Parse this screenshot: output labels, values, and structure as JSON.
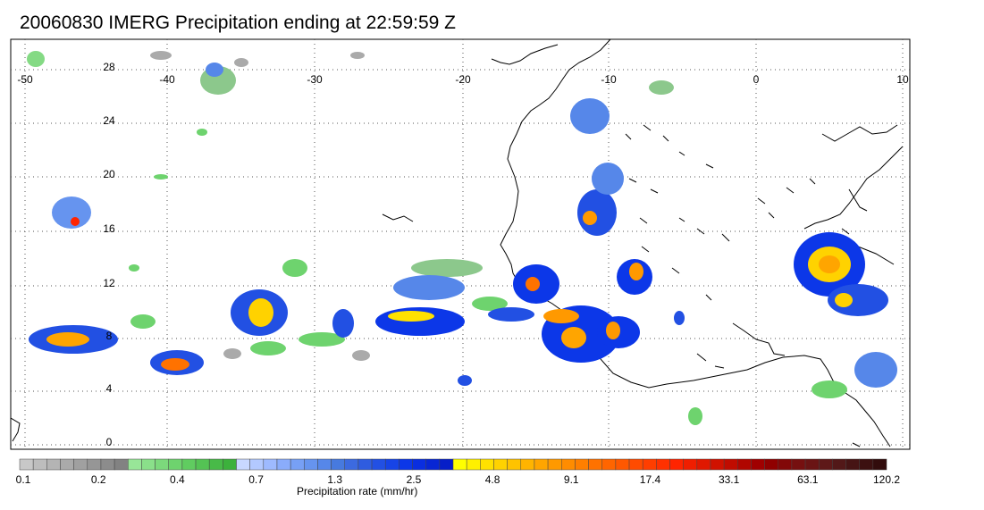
{
  "title": "20060830 IMERG Precipitation ending at 22:59:59 Z",
  "map": {
    "lon_range": [
      -50,
      10
    ],
    "lat_range": [
      -1,
      30
    ],
    "lon_ticks": [
      "-50",
      "-40",
      "-30",
      "-20",
      "-10",
      "0",
      "10"
    ],
    "lat_ticks": [
      "28",
      "24",
      "20",
      "16",
      "12",
      "8",
      "4",
      "0"
    ],
    "grid": "dotted"
  },
  "colorbar": {
    "title": "Precipitation rate (mm/hr)",
    "tick_labels": [
      "0.1",
      "0.2",
      "0.4",
      "0.7",
      "1.3",
      "2.5",
      "4.8",
      "9.1",
      "17.4",
      "33.1",
      "63.1",
      "120.2"
    ],
    "colors": [
      "#c8c8c8",
      "#bdbdbd",
      "#b4b4b4",
      "#aaaaaa",
      "#a0a0a0",
      "#969696",
      "#8c8c8c",
      "#828282",
      "#98e698",
      "#8ae08a",
      "#7cd97c",
      "#6ed36e",
      "#60cc60",
      "#54c354",
      "#48ba48",
      "#3cb13c",
      "#c8d8ff",
      "#b3c9ff",
      "#9ebaff",
      "#8aacfb",
      "#77a0f5",
      "#6694ef",
      "#5687e9",
      "#477adf",
      "#3c6ae0",
      "#2f5ce0",
      "#2250e3",
      "#1744e6",
      "#0c37e8",
      "#0a2ee0",
      "#0826d4",
      "#061ec8",
      "#ffff00",
      "#fff000",
      "#ffe100",
      "#ffd200",
      "#ffc300",
      "#ffb400",
      "#ffa500",
      "#ff9900",
      "#ff8c00",
      "#ff7f00",
      "#ff7200",
      "#ff6500",
      "#ff5800",
      "#ff4b00",
      "#ff3e00",
      "#ff3100",
      "#ff2400",
      "#f01e00",
      "#e01800",
      "#d01200",
      "#c00c00",
      "#b00600",
      "#a00000",
      "#900000",
      "#820808",
      "#761010",
      "#6a1414",
      "#5e1818",
      "#521818",
      "#461414",
      "#3c1010",
      "#320c0c"
    ]
  }
}
